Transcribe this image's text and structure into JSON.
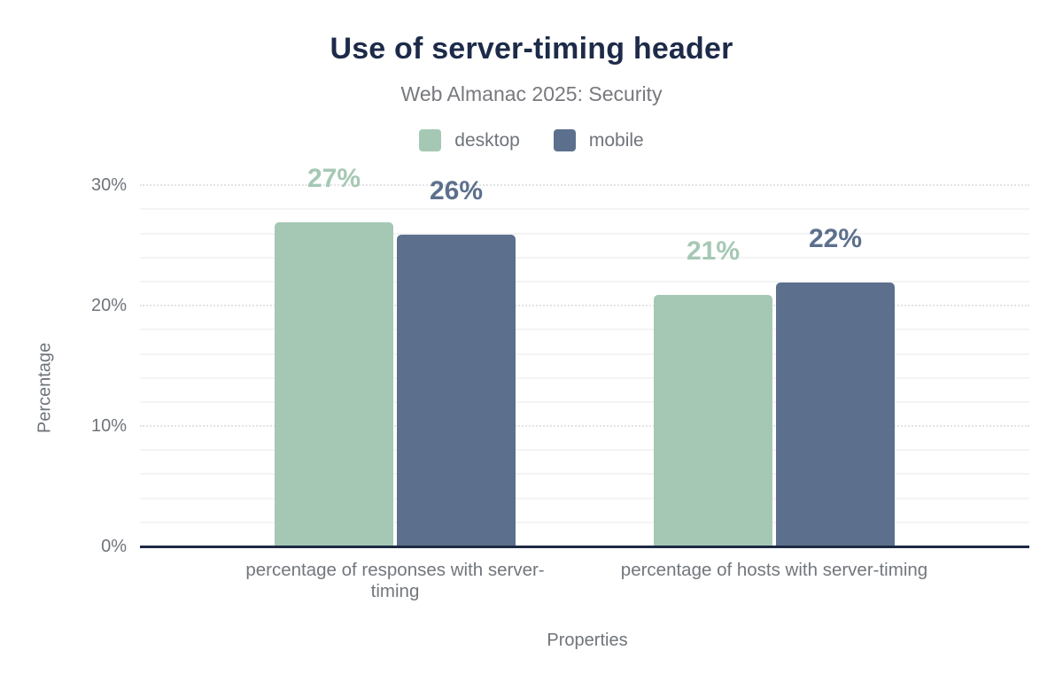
{
  "chart_data": {
    "type": "bar",
    "title": "Use of server-timing header",
    "subtitle": "Web Almanac 2025: Security",
    "categories": [
      "percentage of responses with server-timing",
      "percentage of hosts with server-timing"
    ],
    "series": [
      {
        "name": "desktop",
        "color": "#a5c8b4",
        "values": [
          27,
          21
        ],
        "labels": [
          "27%",
          "21%"
        ]
      },
      {
        "name": "mobile",
        "color": "#5c708d",
        "values": [
          26,
          22
        ],
        "labels": [
          "26%",
          "22%"
        ]
      }
    ],
    "xlabel": "Properties",
    "ylabel": "Percentage",
    "ylim": [
      0,
      32.3
    ],
    "yticks": [
      {
        "value": 0,
        "label": "0%"
      },
      {
        "value": 10,
        "label": "10%"
      },
      {
        "value": 20,
        "label": "20%"
      },
      {
        "value": 30,
        "label": "30%"
      }
    ],
    "grid": {
      "minor_step": 2,
      "major_step": 10,
      "max_line": 30
    },
    "legend_position": "top"
  },
  "colors": {
    "title": "#1d2b49",
    "subtitle": "#77797d",
    "axis_text": "#6f747b",
    "axis_line": "#1e2a44",
    "grid_major": "#e2e3e4",
    "grid_minor": "#f4f4f5"
  }
}
